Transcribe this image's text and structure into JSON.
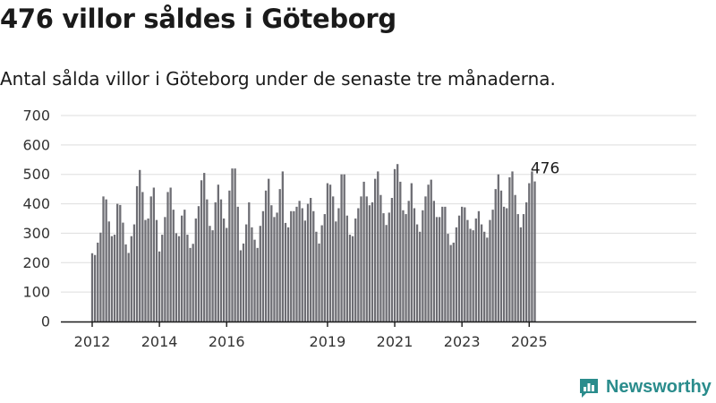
{
  "title": "476 villor såldes i Göteborg",
  "subtitle": "Antal sålda villor i Göteborg under de senaste tre månaderna.",
  "brand": {
    "name": "Newsworthy",
    "icon": "newsworthy-logo-icon"
  },
  "colors": {
    "bar": "#6e6e74",
    "highlight": "#2a9d8f",
    "grid": "#dddddd",
    "axis": "#1a1a1a",
    "brand": "#2a8c8c"
  },
  "chart_data": {
    "type": "bar",
    "title": "476 villor såldes i Göteborg",
    "subtitle": "Antal sålda villor i Göteborg under de senaste tre månaderna.",
    "xlabel": "",
    "ylabel": "",
    "ylim": [
      0,
      700
    ],
    "yticks": [
      0,
      100,
      200,
      300,
      400,
      500,
      600,
      700
    ],
    "xticks": [
      "2012",
      "2014",
      "2016",
      "2019",
      "2021",
      "2023",
      "2025"
    ],
    "grid": true,
    "legend": "none",
    "x_start": "2012-01",
    "frequency": "monthly",
    "highlight": {
      "x": "2025-07",
      "value": 476,
      "label": "476"
    },
    "values": [
      232,
      226,
      268,
      302,
      425,
      415,
      340,
      290,
      295,
      400,
      396,
      336,
      262,
      233,
      290,
      330,
      460,
      515,
      440,
      345,
      350,
      425,
      455,
      345,
      238,
      295,
      355,
      440,
      455,
      380,
      300,
      290,
      360,
      380,
      295,
      250,
      264,
      350,
      392,
      480,
      505,
      415,
      325,
      310,
      405,
      465,
      415,
      350,
      318,
      445,
      520,
      520,
      390,
      242,
      265,
      330,
      405,
      320,
      278,
      250,
      325,
      375,
      445,
      485,
      395,
      355,
      370,
      450,
      510,
      335,
      320,
      375,
      375,
      390,
      410,
      385,
      343,
      400,
      420,
      375,
      305,
      265,
      327,
      365,
      470,
      465,
      425,
      340,
      385,
      500,
      500,
      360,
      295,
      290,
      350,
      385,
      425,
      475,
      425,
      395,
      405,
      485,
      510,
      430,
      368,
      328,
      370,
      420,
      518,
      535,
      475,
      378,
      365,
      410,
      470,
      385,
      330,
      305,
      378,
      425,
      465,
      482,
      410,
      355,
      355,
      390,
      390,
      298,
      260,
      268,
      320,
      360,
      390,
      388,
      345,
      315,
      310,
      350,
      375,
      330,
      305,
      285,
      345,
      380,
      450,
      500,
      445,
      390,
      385,
      490,
      510,
      430,
      365,
      320,
      365,
      405,
      470,
      510,
      476
    ]
  }
}
